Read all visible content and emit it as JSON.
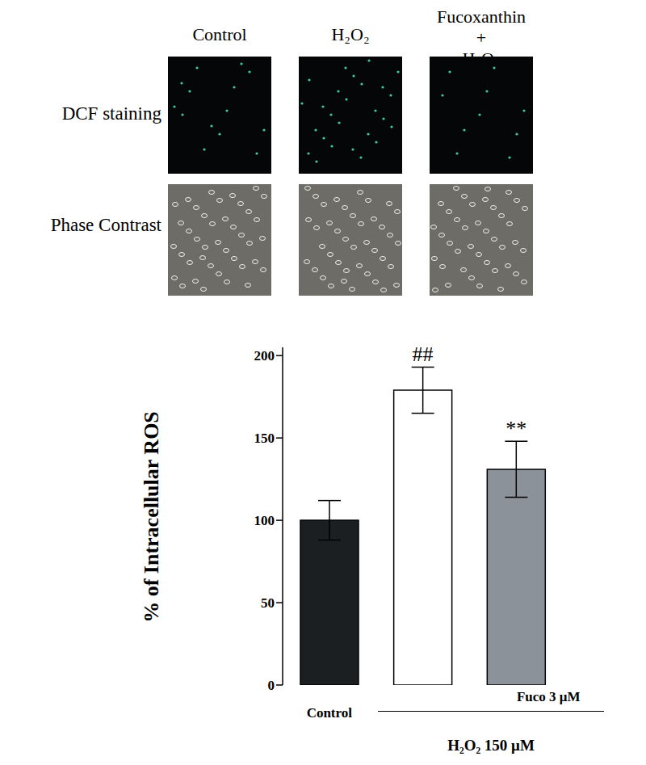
{
  "figure": {
    "columns": [
      "Control",
      "H₂O₂",
      "Fucoxanthin + H₂O₂"
    ],
    "rows": [
      "DCF staining",
      "Phase Contrast"
    ]
  },
  "chart_data": {
    "type": "bar",
    "categories": [
      "Control",
      null,
      "Fuco 3 μM"
    ],
    "values": [
      100,
      179,
      131
    ],
    "errors": [
      12,
      14,
      17
    ],
    "colors": [
      "#1c1f22",
      "#ffffff",
      "#8c9299"
    ],
    "ylabel": "% of Intracellular ROS",
    "ylim": [
      0,
      205
    ],
    "yticks": [
      0,
      50,
      100,
      150,
      200
    ],
    "significance": [
      null,
      "##",
      "**"
    ],
    "group_label": "H₂O₂ 150 μM",
    "grid": false
  }
}
